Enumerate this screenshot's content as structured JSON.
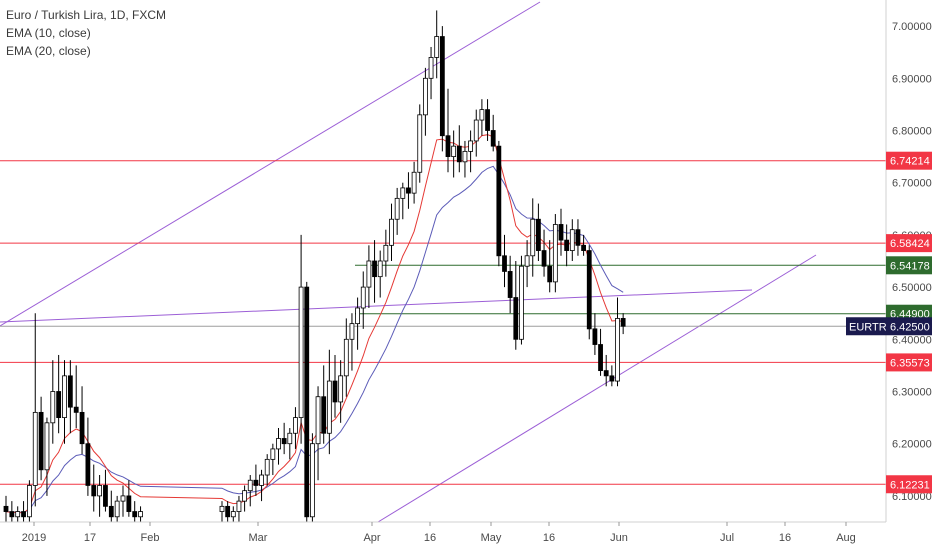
{
  "header": {
    "symbol_line": "Euro / Turkish Lira, 1D, FXCM",
    "ema10": "EMA (10, close)",
    "ema20": "EMA (20, close)"
  },
  "colors": {
    "up_candle": "#ffffff",
    "down_candle": "#000000",
    "candle_outline": "#000000",
    "ema10": "#e53935",
    "ema20": "#5c5cb8",
    "resistance_line": "#f23645",
    "green_line": "#2e6b2e",
    "channel_line": "#9c5fd6",
    "current_line": "#9e9e9e",
    "label_bg_red": "#f23645",
    "label_bg_green": "#2e6b2e",
    "label_bg_current": "#1a1a4e"
  },
  "chart_data": {
    "type": "candlestick",
    "ylim": [
      6.05,
      7.05
    ],
    "y_ticks": [
      "7.00000",
      "6.90000",
      "6.80000",
      "6.70000",
      "6.60000",
      "6.50000",
      "6.40000",
      "6.30000",
      "6.20000",
      "6.10000"
    ],
    "x_ticks": [
      "2019",
      "17",
      "Feb",
      "Mar",
      "Apr",
      "16",
      "May",
      "16",
      "Jun",
      "Jul",
      "16",
      "Aug"
    ],
    "horizontal_levels": [
      {
        "value": 6.74214,
        "label": "6.74214",
        "kind": "red"
      },
      {
        "value": 6.58424,
        "label": "6.58424",
        "kind": "red"
      },
      {
        "value": 6.54178,
        "label": "6.54178",
        "kind": "green"
      },
      {
        "value": 6.449,
        "label": "6.44900",
        "kind": "green"
      },
      {
        "value": 6.35573,
        "label": "6.35573",
        "kind": "red"
      },
      {
        "value": 6.12231,
        "label": "6.12231",
        "kind": "red"
      }
    ],
    "current_price": {
      "symbol": "EURTRY",
      "value": 6.425,
      "label": "6.42500"
    },
    "candles": [
      {
        "o": 6.08,
        "h": 6.1,
        "l": 6.05,
        "c": 6.07
      },
      {
        "o": 6.07,
        "h": 6.09,
        "l": 6.05,
        "c": 6.06
      },
      {
        "o": 6.06,
        "h": 6.08,
        "l": 6.05,
        "c": 6.07
      },
      {
        "o": 6.07,
        "h": 6.09,
        "l": 6.05,
        "c": 6.06
      },
      {
        "o": 6.06,
        "h": 6.13,
        "l": 6.05,
        "c": 6.12
      },
      {
        "o": 6.12,
        "h": 6.45,
        "l": 6.08,
        "c": 6.26
      },
      {
        "o": 6.26,
        "h": 6.29,
        "l": 6.13,
        "c": 6.15
      },
      {
        "o": 6.15,
        "h": 6.25,
        "l": 6.1,
        "c": 6.24
      },
      {
        "o": 6.24,
        "h": 6.36,
        "l": 6.2,
        "c": 6.3
      },
      {
        "o": 6.3,
        "h": 6.37,
        "l": 6.22,
        "c": 6.25
      },
      {
        "o": 6.25,
        "h": 6.36,
        "l": 6.2,
        "c": 6.33
      },
      {
        "o": 6.33,
        "h": 6.36,
        "l": 6.22,
        "c": 6.27
      },
      {
        "o": 6.27,
        "h": 6.35,
        "l": 6.23,
        "c": 6.26
      },
      {
        "o": 6.26,
        "h": 6.31,
        "l": 6.18,
        "c": 6.2
      },
      {
        "o": 6.2,
        "h": 6.25,
        "l": 6.1,
        "c": 6.12
      },
      {
        "o": 6.12,
        "h": 6.16,
        "l": 6.07,
        "c": 6.1
      },
      {
        "o": 6.1,
        "h": 6.14,
        "l": 6.06,
        "c": 6.12
      },
      {
        "o": 6.12,
        "h": 6.15,
        "l": 6.07,
        "c": 6.08
      },
      {
        "o": 6.08,
        "h": 6.11,
        "l": 6.05,
        "c": 6.06
      },
      {
        "o": 6.06,
        "h": 6.1,
        "l": 6.05,
        "c": 6.09
      },
      {
        "o": 6.09,
        "h": 6.12,
        "l": 6.06,
        "c": 6.1
      },
      {
        "o": 6.1,
        "h": 6.13,
        "l": 6.06,
        "c": 6.07
      },
      {
        "o": 6.07,
        "h": 6.09,
        "l": 6.05,
        "c": 6.06
      },
      {
        "o": 6.06,
        "h": 6.08,
        "l": 6.05,
        "c": 6.07
      },
      {
        "o": 6.07,
        "h": 6.09,
        "l": 6.05,
        "c": 6.08
      },
      {
        "o": 6.08,
        "h": 6.09,
        "l": 6.05,
        "c": 6.06
      },
      {
        "o": 6.06,
        "h": 6.08,
        "l": 6.05,
        "c": 6.07
      },
      {
        "o": 6.07,
        "h": 6.1,
        "l": 6.05,
        "c": 6.09
      },
      {
        "o": 6.09,
        "h": 6.12,
        "l": 6.07,
        "c": 6.11
      },
      {
        "o": 6.11,
        "h": 6.14,
        "l": 6.08,
        "c": 6.13
      },
      {
        "o": 6.13,
        "h": 6.16,
        "l": 6.1,
        "c": 6.12
      },
      {
        "o": 6.12,
        "h": 6.15,
        "l": 6.09,
        "c": 6.14
      },
      {
        "o": 6.14,
        "h": 6.18,
        "l": 6.12,
        "c": 6.17
      },
      {
        "o": 6.17,
        "h": 6.2,
        "l": 6.14,
        "c": 6.19
      },
      {
        "o": 6.19,
        "h": 6.23,
        "l": 6.16,
        "c": 6.21
      },
      {
        "o": 6.21,
        "h": 6.24,
        "l": 6.18,
        "c": 6.2
      },
      {
        "o": 6.2,
        "h": 6.23,
        "l": 6.17,
        "c": 6.22
      },
      {
        "o": 6.22,
        "h": 6.27,
        "l": 6.19,
        "c": 6.25
      },
      {
        "o": 6.25,
        "h": 6.6,
        "l": 6.2,
        "c": 6.5
      },
      {
        "o": 6.5,
        "h": 6.51,
        "l": 6.05,
        "c": 6.06
      },
      {
        "o": 6.06,
        "h": 6.22,
        "l": 6.05,
        "c": 6.2
      },
      {
        "o": 6.2,
        "h": 6.31,
        "l": 6.13,
        "c": 6.29
      },
      {
        "o": 6.29,
        "h": 6.35,
        "l": 6.2,
        "c": 6.22
      },
      {
        "o": 6.22,
        "h": 6.38,
        "l": 6.18,
        "c": 6.32
      },
      {
        "o": 6.32,
        "h": 6.37,
        "l": 6.25,
        "c": 6.28
      },
      {
        "o": 6.28,
        "h": 6.36,
        "l": 6.24,
        "c": 6.33
      },
      {
        "o": 6.33,
        "h": 6.44,
        "l": 6.29,
        "c": 6.4
      },
      {
        "o": 6.4,
        "h": 6.45,
        "l": 6.34,
        "c": 6.43
      },
      {
        "o": 6.43,
        "h": 6.48,
        "l": 6.38,
        "c": 6.46
      },
      {
        "o": 6.46,
        "h": 6.53,
        "l": 6.42,
        "c": 6.5
      },
      {
        "o": 6.5,
        "h": 6.58,
        "l": 6.46,
        "c": 6.55
      },
      {
        "o": 6.55,
        "h": 6.59,
        "l": 6.47,
        "c": 6.52
      },
      {
        "o": 6.52,
        "h": 6.57,
        "l": 6.48,
        "c": 6.55
      },
      {
        "o": 6.55,
        "h": 6.61,
        "l": 6.52,
        "c": 6.58
      },
      {
        "o": 6.58,
        "h": 6.66,
        "l": 6.55,
        "c": 6.63
      },
      {
        "o": 6.63,
        "h": 6.69,
        "l": 6.6,
        "c": 6.67
      },
      {
        "o": 6.67,
        "h": 6.7,
        "l": 6.63,
        "c": 6.69
      },
      {
        "o": 6.69,
        "h": 6.72,
        "l": 6.65,
        "c": 6.68
      },
      {
        "o": 6.68,
        "h": 6.74,
        "l": 6.66,
        "c": 6.72
      },
      {
        "o": 6.72,
        "h": 6.85,
        "l": 6.7,
        "c": 6.83
      },
      {
        "o": 6.83,
        "h": 6.92,
        "l": 6.79,
        "c": 6.9
      },
      {
        "o": 6.9,
        "h": 6.96,
        "l": 6.86,
        "c": 6.94
      },
      {
        "o": 6.94,
        "h": 7.03,
        "l": 6.9,
        "c": 6.98
      },
      {
        "o": 6.98,
        "h": 7.0,
        "l": 6.76,
        "c": 6.79
      },
      {
        "o": 6.79,
        "h": 6.88,
        "l": 6.72,
        "c": 6.75
      },
      {
        "o": 6.75,
        "h": 6.8,
        "l": 6.71,
        "c": 6.77
      },
      {
        "o": 6.77,
        "h": 6.81,
        "l": 6.72,
        "c": 6.74
      },
      {
        "o": 6.74,
        "h": 6.78,
        "l": 6.71,
        "c": 6.76
      },
      {
        "o": 6.76,
        "h": 6.8,
        "l": 6.72,
        "c": 6.78
      },
      {
        "o": 6.78,
        "h": 6.84,
        "l": 6.75,
        "c": 6.82
      },
      {
        "o": 6.82,
        "h": 6.86,
        "l": 6.79,
        "c": 6.84
      },
      {
        "o": 6.84,
        "h": 6.86,
        "l": 6.78,
        "c": 6.8
      },
      {
        "o": 6.8,
        "h": 6.83,
        "l": 6.76,
        "c": 6.77
      },
      {
        "o": 6.77,
        "h": 6.78,
        "l": 6.54,
        "c": 6.56
      },
      {
        "o": 6.56,
        "h": 6.6,
        "l": 6.5,
        "c": 6.53
      },
      {
        "o": 6.53,
        "h": 6.56,
        "l": 6.45,
        "c": 6.48
      },
      {
        "o": 6.48,
        "h": 6.55,
        "l": 6.38,
        "c": 6.4
      },
      {
        "o": 6.4,
        "h": 6.56,
        "l": 6.39,
        "c": 6.54
      },
      {
        "o": 6.54,
        "h": 6.59,
        "l": 6.5,
        "c": 6.56
      },
      {
        "o": 6.56,
        "h": 6.67,
        "l": 6.52,
        "c": 6.63
      },
      {
        "o": 6.63,
        "h": 6.66,
        "l": 6.55,
        "c": 6.57
      },
      {
        "o": 6.57,
        "h": 6.61,
        "l": 6.52,
        "c": 6.54
      },
      {
        "o": 6.54,
        "h": 6.59,
        "l": 6.49,
        "c": 6.51
      },
      {
        "o": 6.51,
        "h": 6.64,
        "l": 6.49,
        "c": 6.62
      },
      {
        "o": 6.62,
        "h": 6.65,
        "l": 6.56,
        "c": 6.59
      },
      {
        "o": 6.59,
        "h": 6.62,
        "l": 6.54,
        "c": 6.57
      },
      {
        "o": 6.57,
        "h": 6.63,
        "l": 6.55,
        "c": 6.61
      },
      {
        "o": 6.61,
        "h": 6.63,
        "l": 6.56,
        "c": 6.58
      },
      {
        "o": 6.58,
        "h": 6.6,
        "l": 6.56,
        "c": 6.57
      },
      {
        "o": 6.57,
        "h": 6.58,
        "l": 6.4,
        "c": 6.42
      },
      {
        "o": 6.42,
        "h": 6.45,
        "l": 6.37,
        "c": 6.39
      },
      {
        "o": 6.39,
        "h": 6.42,
        "l": 6.33,
        "c": 6.34
      },
      {
        "o": 6.34,
        "h": 6.37,
        "l": 6.31,
        "c": 6.33
      },
      {
        "o": 6.33,
        "h": 6.35,
        "l": 6.31,
        "c": 6.32
      },
      {
        "o": 6.32,
        "h": 6.48,
        "l": 6.31,
        "c": 6.44
      },
      {
        "o": 6.44,
        "h": 6.45,
        "l": 6.41,
        "c": 6.425
      }
    ]
  }
}
